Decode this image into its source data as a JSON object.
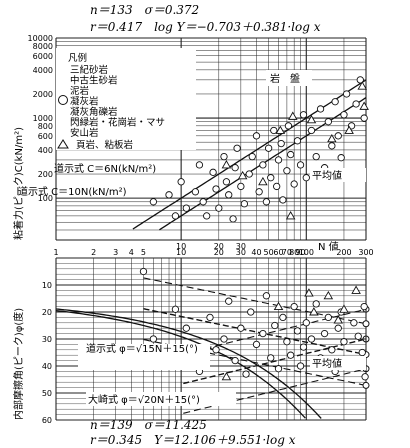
{
  "stats_top": {
    "line1": "n＝133　σ＝0.372",
    "line2": "r＝0.417　log Y＝−0.703＋0.381·log x"
  },
  "stats_bottom": {
    "line1": "n＝139　σ＝11.425",
    "line2": "r＝0.345　Y＝12.106＋9.551·log x"
  },
  "legend": {
    "title": "凡例",
    "circle_items": [
      "三紀砂岩",
      "中古生砂岩",
      "泥岩",
      "凝灰岩",
      "凝灰角礫岩",
      "閃緑岩・花崗岩・マサ",
      "安山岩"
    ],
    "triangle_items": [
      "頁岩、粘板岩"
    ]
  },
  "chart_data": [
    {
      "type": "scatter",
      "title": "",
      "xlabel": "N 値",
      "ylabel": "粘着力(ピーク)C(kN/m²)",
      "x_scale": "log",
      "y_scale": "log",
      "xlim": [
        1,
        300
      ],
      "ylim": [
        30,
        10000
      ],
      "x_ticks": [
        10,
        20,
        30
      ],
      "y_ticks": [
        10000,
        8000,
        6000,
        4000,
        2000,
        1000,
        800,
        600,
        400,
        200,
        100
      ],
      "y_tick_labels": [
        "10000",
        "8000",
        "6000",
        "4000",
        "2000",
        "1000",
        "800",
        "600",
        "400",
        "200",
        "100"
      ],
      "region_label": "岩　盤",
      "mean_label": "平均値",
      "guide_lines": [
        {
          "label": "道示式 C＝6N(kN/m²)",
          "coef": 6
        },
        {
          "label": "道示式 C＝10N(kN/m²)",
          "coef": 10
        }
      ],
      "regression": {
        "a": -0.703,
        "b": 0.381,
        "sigma": 0.372
      },
      "points_circle": [
        [
          6,
          90
        ],
        [
          8,
          110
        ],
        [
          9,
          60
        ],
        [
          10,
          160
        ],
        [
          11,
          75
        ],
        [
          13,
          120
        ],
        [
          14,
          260
        ],
        [
          15,
          90
        ],
        [
          16,
          60
        ],
        [
          18,
          210
        ],
        [
          19,
          130
        ],
        [
          20,
          75
        ],
        [
          22,
          330
        ],
        [
          23,
          160
        ],
        [
          24,
          110
        ],
        [
          26,
          55
        ],
        [
          27,
          240
        ],
        [
          28,
          420
        ],
        [
          30,
          140
        ],
        [
          32,
          85
        ],
        [
          35,
          200
        ],
        [
          37,
          330
        ],
        [
          40,
          600
        ],
        [
          42,
          120
        ],
        [
          45,
          260
        ],
        [
          48,
          90
        ],
        [
          50,
          420
        ],
        [
          52,
          180
        ],
        [
          55,
          700
        ],
        [
          58,
          140
        ],
        [
          60,
          300
        ],
        [
          63,
          480
        ],
        [
          65,
          95
        ],
        [
          70,
          220
        ],
        [
          72,
          800
        ],
        [
          75,
          350
        ],
        [
          80,
          150
        ],
        [
          85,
          520
        ],
        [
          90,
          260
        ],
        [
          95,
          1100
        ],
        [
          100,
          180
        ],
        [
          110,
          700
        ],
        [
          120,
          330
        ],
        [
          130,
          1300
        ],
        [
          140,
          240
        ],
        [
          150,
          900
        ],
        [
          160,
          450
        ],
        [
          170,
          1600
        ],
        [
          180,
          600
        ],
        [
          190,
          320
        ],
        [
          200,
          1100
        ],
        [
          210,
          2000
        ],
        [
          230,
          800
        ],
        [
          250,
          1500
        ],
        [
          270,
          3000
        ],
        [
          290,
          1000
        ]
      ],
      "points_triangle": [
        [
          23,
          260
        ],
        [
          31,
          190
        ],
        [
          45,
          160
        ],
        [
          62,
          700
        ],
        [
          78,
          1050
        ],
        [
          110,
          950
        ],
        [
          160,
          550
        ],
        [
          220,
          700
        ],
        [
          280,
          2500
        ],
        [
          290,
          1400
        ],
        [
          75,
          60
        ]
      ]
    },
    {
      "type": "scatter",
      "title": "",
      "xlabel": "N 値",
      "ylabel": "内部摩擦角(ピーク)φ(度)",
      "x_scale": "log",
      "y_scale": "linear",
      "y_inverted": true,
      "xlim": [
        1,
        300
      ],
      "ylim": [
        0,
        60
      ],
      "x_ticks": [
        1,
        2,
        3,
        4,
        5,
        10,
        20,
        30,
        40,
        50,
        60,
        70,
        80,
        90,
        100,
        200,
        300
      ],
      "x_tick_labels": [
        "1",
        "2",
        "3",
        "4",
        "5",
        "10",
        "20",
        "30",
        "40",
        "50",
        "60",
        "70",
        "80",
        "90",
        "100",
        "200",
        "300"
      ],
      "y_ticks": [
        10,
        20,
        30,
        40,
        50,
        60
      ],
      "mean_label": "平均値",
      "guide_lines": [
        {
          "label": "道示式 φ＝√15N＋15(°)",
          "coef": 15
        },
        {
          "label": "大崎式 φ＝√20N＋15(°)",
          "coef": 20
        }
      ],
      "regression": {
        "a": 12.106,
        "b": 9.551,
        "sigma": 11.425
      },
      "points_circle": [
        [
          5,
          5
        ],
        [
          6,
          30
        ],
        [
          9,
          19
        ],
        [
          11,
          26
        ],
        [
          14,
          42
        ],
        [
          17,
          22
        ],
        [
          19,
          34
        ],
        [
          22,
          30
        ],
        [
          24,
          16
        ],
        [
          27,
          38
        ],
        [
          30,
          26
        ],
        [
          33,
          43
        ],
        [
          36,
          20
        ],
        [
          40,
          32
        ],
        [
          45,
          28
        ],
        [
          48,
          14
        ],
        [
          52,
          37
        ],
        [
          56,
          25
        ],
        [
          60,
          41
        ],
        [
          65,
          22
        ],
        [
          70,
          31
        ],
        [
          75,
          36
        ],
        [
          80,
          18
        ],
        [
          85,
          27
        ],
        [
          90,
          40
        ],
        [
          95,
          33
        ],
        [
          100,
          24
        ],
        [
          110,
          30
        ],
        [
          120,
          17
        ],
        [
          130,
          37
        ],
        [
          140,
          28
        ],
        [
          150,
          22
        ],
        [
          160,
          34
        ],
        [
          170,
          42
        ],
        [
          180,
          26
        ],
        [
          190,
          20
        ],
        [
          200,
          31
        ],
        [
          220,
          38
        ],
        [
          240,
          24
        ],
        [
          260,
          29
        ],
        [
          280,
          35
        ],
        [
          290,
          18
        ],
        [
          295,
          44
        ]
      ],
      "points_triangle": [
        [
          23,
          44
        ],
        [
          60,
          18
        ],
        [
          105,
          13
        ],
        [
          115,
          20
        ],
        [
          150,
          14
        ],
        [
          180,
          23
        ],
        [
          200,
          19
        ],
        [
          250,
          12
        ]
      ]
    }
  ]
}
